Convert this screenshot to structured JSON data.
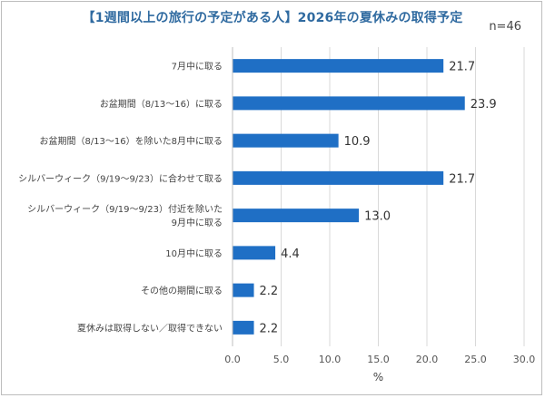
{
  "chart_data": {
    "type": "bar",
    "orientation": "horizontal",
    "title": "【1週間以上の旅行の予定がある人】2026年の夏休みの取得予定",
    "n_label": "n=46",
    "categories": [
      "7月中に取る",
      "お盆期間（8/13～16）に取る",
      "お盆期間（8/13～16）を除いた8月中に取る",
      "シルバーウィーク（9/19～9/23）に合わせて取る",
      "シルバーウィーク（9/19～9/23）付近を除いた 9月中に取る",
      "10月中に取る",
      "その他の期間に取る",
      "夏休みは取得しない／取得できない"
    ],
    "values": [
      21.7,
      23.9,
      10.9,
      21.7,
      13.0,
      4.4,
      2.2,
      2.2
    ],
    "value_labels": [
      "21.7",
      "23.9",
      "10.9",
      "21.7",
      "13.0",
      "4.4",
      "2.2",
      "2.2"
    ],
    "xlabel": "%",
    "xlim": [
      0,
      30
    ],
    "xticks": [
      "0.0",
      "5.0",
      "10.0",
      "15.0",
      "20.0",
      "25.0",
      "30.0"
    ],
    "grid": "vertical",
    "bar_color": "#1f6fc5"
  }
}
